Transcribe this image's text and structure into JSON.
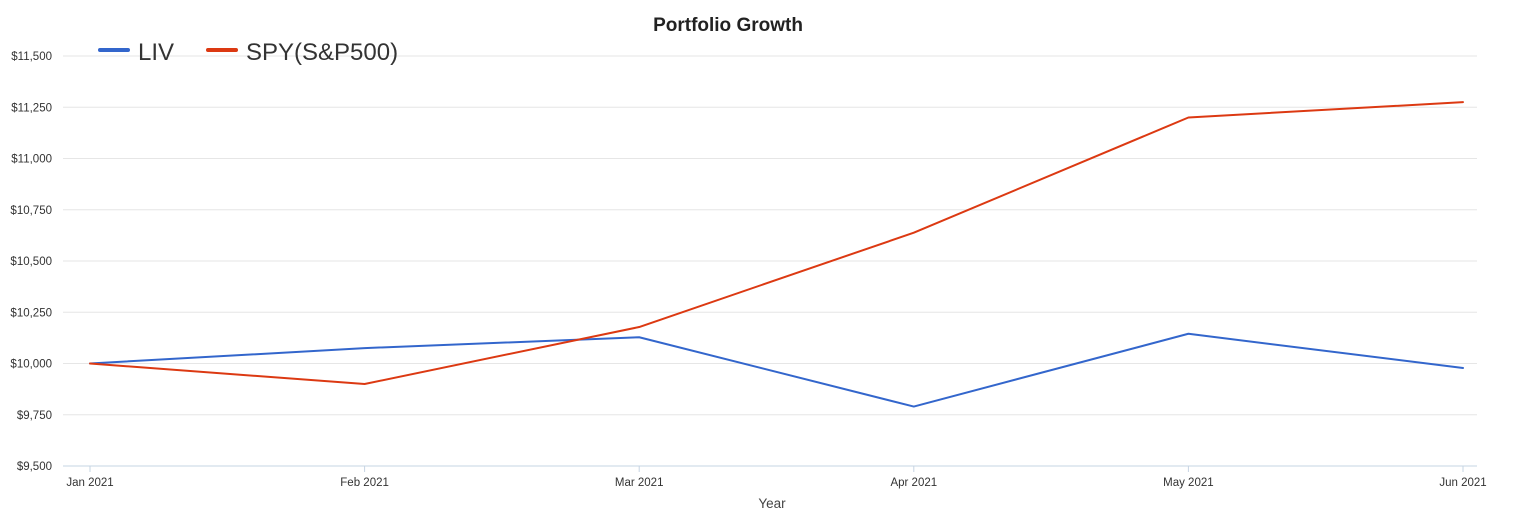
{
  "chart_data": {
    "type": "line",
    "title": "Portfolio Growth",
    "xlabel": "Year",
    "ylabel": "",
    "categories": [
      "Jan 2021",
      "Feb 2021",
      "Mar 2021",
      "Apr 2021",
      "May 2021",
      "Jun 2021"
    ],
    "ylim": [
      9500,
      11500
    ],
    "yticks": [
      9500,
      9750,
      10000,
      10250,
      10500,
      10750,
      11000,
      11250,
      11500
    ],
    "ytick_labels": [
      "$9,500",
      "$9,750",
      "$10,000",
      "$10,250",
      "$10,500",
      "$10,750",
      "$11,000",
      "$11,250",
      "$11,500"
    ],
    "grid": true,
    "legend_position": "top-left",
    "series": [
      {
        "name": "LIV",
        "color": "#3366cc",
        "values": [
          10000,
          10075,
          10128,
          9790,
          10145,
          9978
        ]
      },
      {
        "name": "SPY(S&P500)",
        "color": "#dc3912",
        "values": [
          10000,
          9900,
          10178,
          10638,
          11200,
          11275
        ]
      }
    ]
  }
}
